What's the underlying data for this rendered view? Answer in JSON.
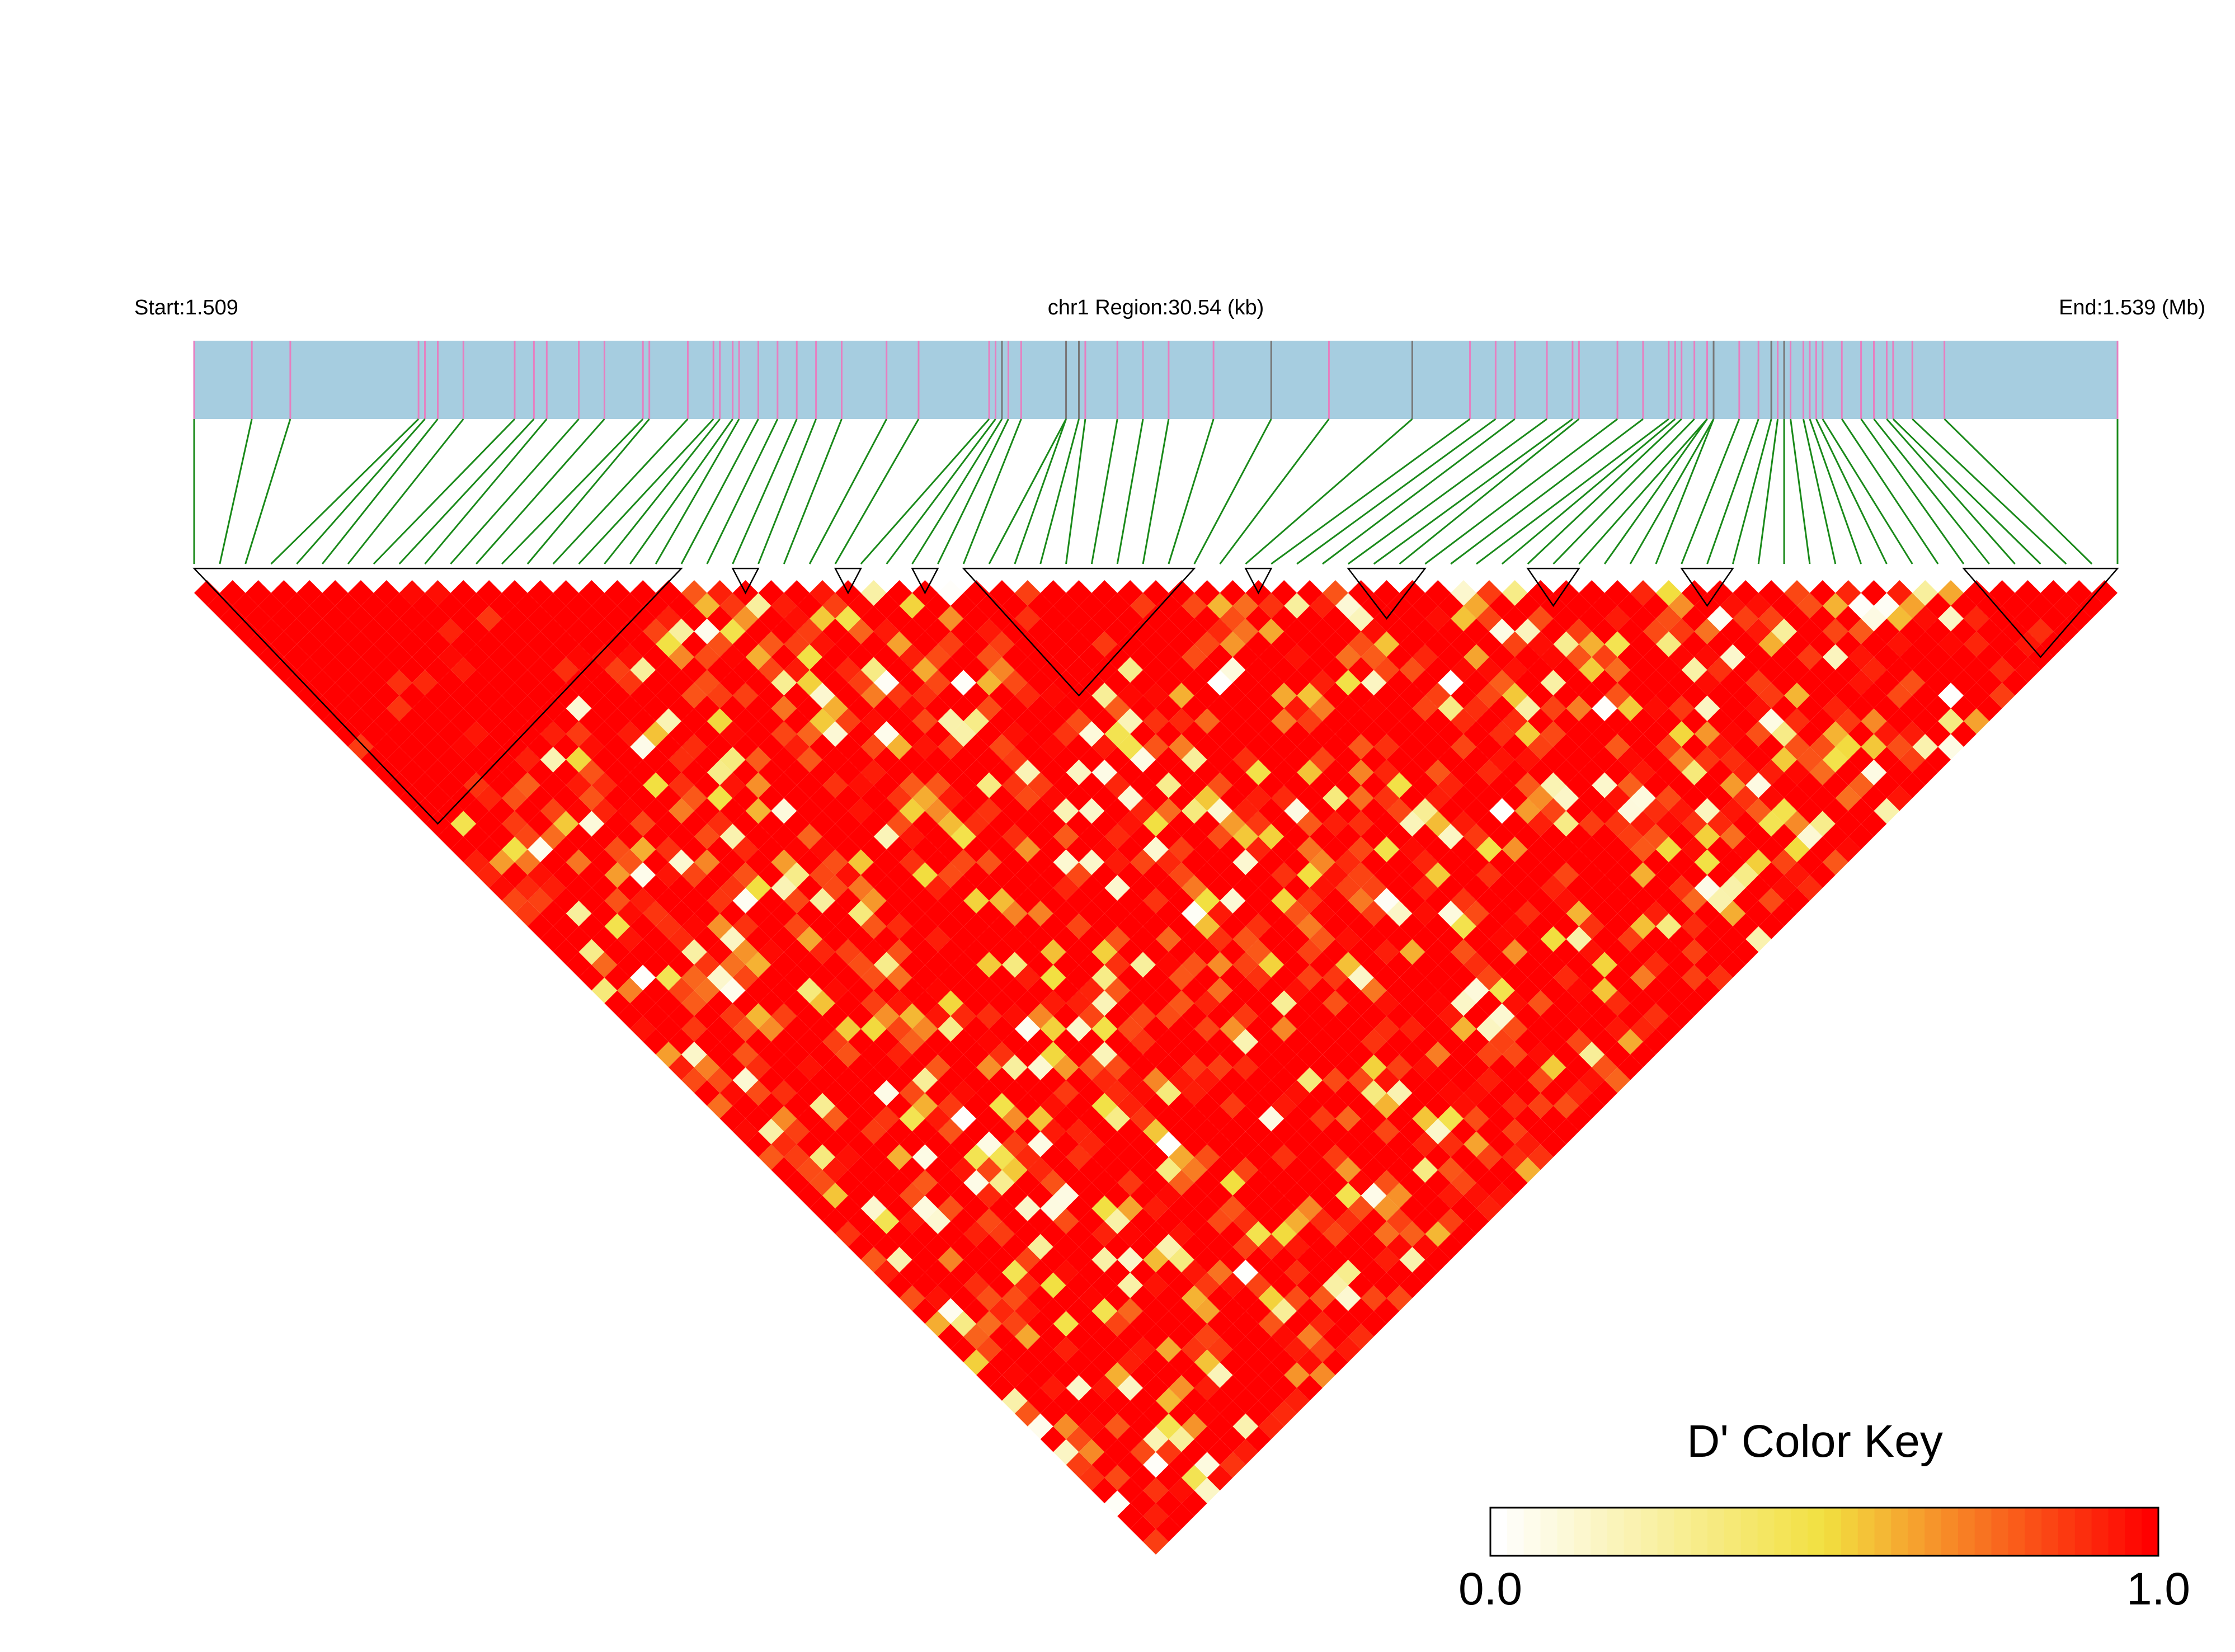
{
  "header": {
    "start_label": "Start:1.509",
    "region_label": "chr1 Region:30.54 (kb)",
    "end_label": "End:1.539 (Mb)"
  },
  "colors": {
    "track": "#a6cde0",
    "snp_tick": "#e67fc0",
    "snp_tick_dark": "#777777",
    "connector": "#1a8a1a",
    "block_outline": "#000000",
    "d_high": "#ff0000",
    "d_mid": "#f2e040",
    "d_low": "#ffffff"
  },
  "chart_data": {
    "type": "heatmap",
    "title": "",
    "chromosome": "chr1",
    "region_start_mb": 1.509,
    "region_end_mb": 1.539,
    "region_length_kb": 30.54,
    "snp_count": 76,
    "snp_positions_mb": [
      1.509,
      1.5099,
      1.5105,
      1.5125,
      1.5126,
      1.5128,
      1.5132,
      1.514,
      1.5143,
      1.5145,
      1.515,
      1.5154,
      1.516,
      1.5161,
      1.5167,
      1.5171,
      1.5172,
      1.5174,
      1.5175,
      1.5178,
      1.5181,
      1.5184,
      1.5187,
      1.5191,
      1.5198,
      1.5203,
      1.5214,
      1.5215,
      1.5216,
      1.5217,
      1.5219,
      1.5226,
      1.5226,
      1.5228,
      1.5229,
      1.5234,
      1.5238,
      1.5242,
      1.5249,
      1.5258,
      1.5267,
      1.528,
      1.5289,
      1.5293,
      1.5296,
      1.5301,
      1.5305,
      1.5306,
      1.5312,
      1.5316,
      1.532,
      1.5321,
      1.5322,
      1.5324,
      1.5326,
      1.5326,
      1.5327,
      1.5327,
      1.5331,
      1.5334,
      1.5336,
      1.5337,
      1.5338,
      1.5339,
      1.5341,
      1.5342,
      1.5343,
      1.5344,
      1.5347,
      1.535,
      1.5352,
      1.5354,
      1.5355,
      1.5358,
      1.5363,
      1.539
    ],
    "dark_tick_snps": [
      28,
      32,
      33,
      39,
      41,
      56,
      57,
      60,
      62
    ],
    "ld_blocks": [
      [
        0,
        19
      ],
      [
        21,
        22
      ],
      [
        25,
        26
      ],
      [
        28,
        29
      ],
      [
        30,
        39
      ],
      [
        41,
        42
      ],
      [
        45,
        48
      ],
      [
        52,
        54
      ],
      [
        58,
        60
      ],
      [
        69,
        75
      ]
    ],
    "color_key": {
      "title": "D' Color Key",
      "min_label": "0.0",
      "max_label": "1.0",
      "range": [
        0.0,
        1.0
      ]
    },
    "d_prime_note": "Pairwise D' values for all 76 SNPs (lower-triangle heatmap); values are predominantly near 1.0 (red) with scattered lower values (yellow/white)."
  }
}
